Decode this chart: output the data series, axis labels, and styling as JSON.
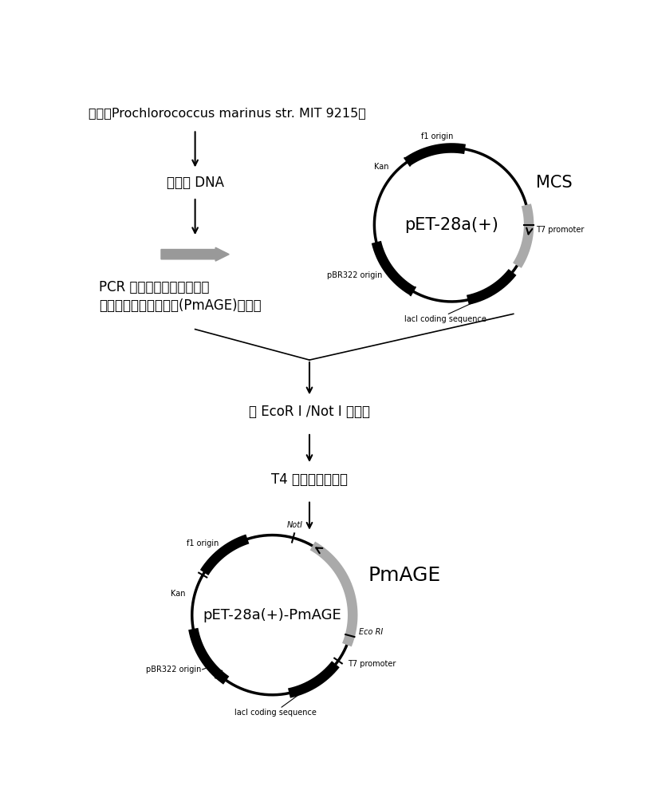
{
  "bg_color": "#ffffff",
  "title_text": "海藻（Prochlorococcus marinus str. MIT 9215）",
  "step1_text": "基因组 DNA",
  "step2_line1": "PCR 扩增获得含有两个酶切",
  "step2_line2": "位点的葡萄糖胺异构酶(PmAGE)的基因",
  "step3_text": "用 EcoR I /Not I 双酶切",
  "step4_text": "T4 连接酶过夜连接",
  "plasmid1_label": "pET-28a(+)",
  "plasmid1_mcs": "MCS",
  "plasmid2_label": "pET-28a(+)-PmAGE",
  "plasmid2_name": "PmAGE"
}
